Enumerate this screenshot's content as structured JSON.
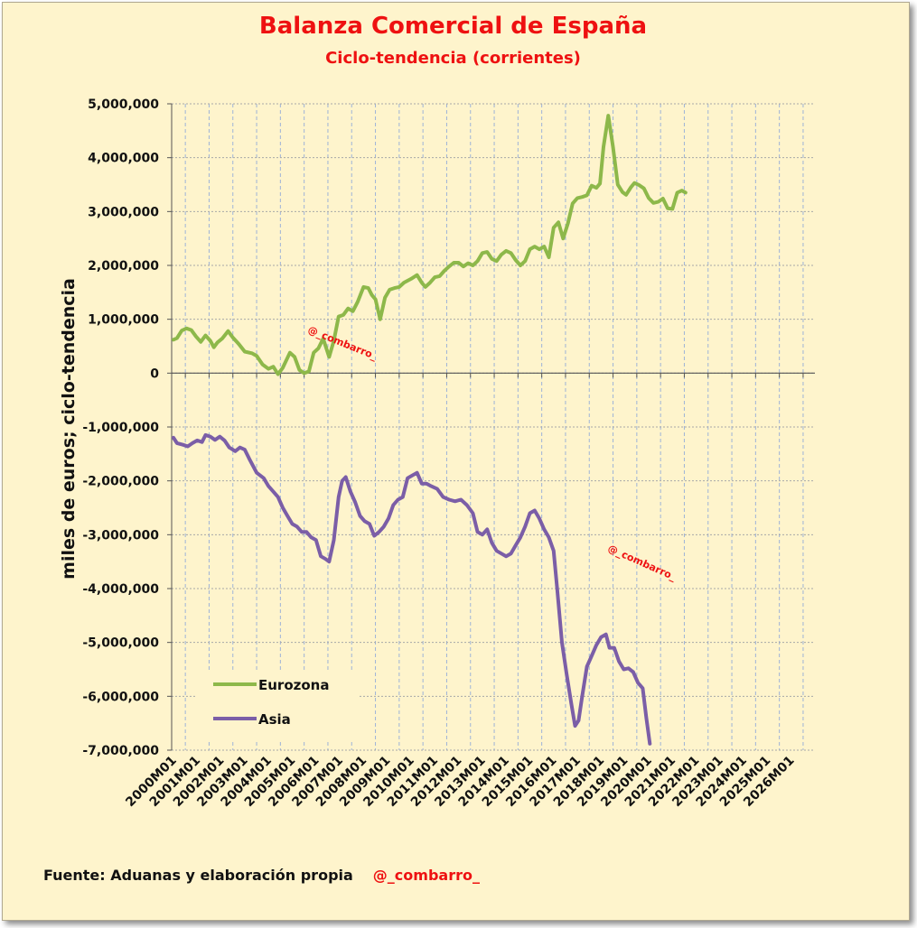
{
  "title": "Balanza Comercial de España",
  "subtitle": "Ciclo-tendencia (corrientes)",
  "footer": {
    "source": "Fuente: Aduanas y elaboración propia",
    "handle": "@_combarro_"
  },
  "watermark": "@_combarro_",
  "colors": {
    "title": "#EE1111",
    "eurozona": "#8DB84A",
    "asia": "#7B5EA7",
    "background": "#FEF4CC"
  },
  "chart_data": {
    "type": "line",
    "title": "Balanza Comercial de España",
    "subtitle": "Ciclo-tendencia (corrientes)",
    "ylabel": "miles de euros; ciclo-tendencia",
    "xlabel": "",
    "ylim": [
      -7000000,
      5000000
    ],
    "yticks": [
      "5,000,000",
      "4,000,000",
      "3,000,000",
      "2,000,000",
      "1,000,000",
      "0",
      "-1,000,000",
      "-2,000,000",
      "-3,000,000",
      "-4,000,000",
      "-5,000,000",
      "-6,000,000",
      "-7,000,000"
    ],
    "categories": [
      "2000M01",
      "2001M01",
      "2002M01",
      "2003M01",
      "2004M01",
      "2005M01",
      "2006M01",
      "2007M01",
      "2008M01",
      "2009M01",
      "2010M01",
      "2011M01",
      "2012M01",
      "2013M01",
      "2014M01",
      "2015M01",
      "2016M01",
      "2017M01",
      "2018M01",
      "2019M01",
      "2020M01",
      "2021M01",
      "2022M01",
      "2023M01",
      "2024M01",
      "2025M01",
      "2026M01"
    ],
    "grid": true,
    "legend": "bottom-left",
    "series": [
      {
        "name": "Eurozona",
        "color": "#8DB84A",
        "points": [
          [
            0,
            620000
          ],
          [
            0.15,
            650000
          ],
          [
            0.35,
            790000
          ],
          [
            0.55,
            830000
          ],
          [
            0.75,
            800000
          ],
          [
            0.95,
            680000
          ],
          [
            1.15,
            580000
          ],
          [
            1.35,
            700000
          ],
          [
            1.55,
            600000
          ],
          [
            1.7,
            480000
          ],
          [
            1.85,
            570000
          ],
          [
            2.05,
            640000
          ],
          [
            2.3,
            780000
          ],
          [
            2.5,
            660000
          ],
          [
            2.75,
            540000
          ],
          [
            3.0,
            400000
          ],
          [
            3.3,
            370000
          ],
          [
            3.5,
            320000
          ],
          [
            3.75,
            160000
          ],
          [
            4.0,
            80000
          ],
          [
            4.2,
            120000
          ],
          [
            4.4,
            -20000
          ],
          [
            4.6,
            100000
          ],
          [
            4.9,
            380000
          ],
          [
            5.1,
            300000
          ],
          [
            5.3,
            60000
          ],
          [
            5.5,
            0
          ],
          [
            5.7,
            30000
          ],
          [
            5.9,
            380000
          ],
          [
            6.1,
            460000
          ],
          [
            6.3,
            640000
          ],
          [
            6.55,
            300000
          ],
          [
            6.75,
            600000
          ],
          [
            6.95,
            1050000
          ],
          [
            7.15,
            1080000
          ],
          [
            7.35,
            1200000
          ],
          [
            7.55,
            1150000
          ],
          [
            7.75,
            1320000
          ],
          [
            8.0,
            1600000
          ],
          [
            8.2,
            1580000
          ],
          [
            8.35,
            1450000
          ],
          [
            8.5,
            1370000
          ],
          [
            8.7,
            1000000
          ],
          [
            8.9,
            1400000
          ],
          [
            9.1,
            1550000
          ],
          [
            9.3,
            1580000
          ],
          [
            9.5,
            1600000
          ],
          [
            9.7,
            1680000
          ],
          [
            10.0,
            1750000
          ],
          [
            10.25,
            1820000
          ],
          [
            10.45,
            1680000
          ],
          [
            10.6,
            1600000
          ],
          [
            10.8,
            1680000
          ],
          [
            11.0,
            1780000
          ],
          [
            11.2,
            1800000
          ],
          [
            11.4,
            1900000
          ],
          [
            11.6,
            1980000
          ],
          [
            11.8,
            2050000
          ],
          [
            12.0,
            2050000
          ],
          [
            12.2,
            1980000
          ],
          [
            12.4,
            2040000
          ],
          [
            12.6,
            2000000
          ],
          [
            12.8,
            2080000
          ],
          [
            13.0,
            2230000
          ],
          [
            13.2,
            2250000
          ],
          [
            13.4,
            2120000
          ],
          [
            13.6,
            2080000
          ],
          [
            13.8,
            2200000
          ],
          [
            14.0,
            2270000
          ],
          [
            14.2,
            2230000
          ],
          [
            14.4,
            2100000
          ],
          [
            14.6,
            2000000
          ],
          [
            14.8,
            2080000
          ],
          [
            15.0,
            2300000
          ],
          [
            15.2,
            2350000
          ],
          [
            15.4,
            2300000
          ],
          [
            15.6,
            2350000
          ],
          [
            15.8,
            2150000
          ],
          [
            16.0,
            2700000
          ],
          [
            16.2,
            2800000
          ],
          [
            16.4,
            2500000
          ],
          [
            16.6,
            2780000
          ],
          [
            16.8,
            3150000
          ],
          [
            17.0,
            3250000
          ],
          [
            17.2,
            3270000
          ],
          [
            17.4,
            3300000
          ],
          [
            17.6,
            3480000
          ],
          [
            17.8,
            3440000
          ],
          [
            17.95,
            3520000
          ],
          [
            18.1,
            4200000
          ],
          [
            18.3,
            4780000
          ],
          [
            18.5,
            4200000
          ],
          [
            18.7,
            3500000
          ],
          [
            18.9,
            3360000
          ],
          [
            19.05,
            3310000
          ],
          [
            19.25,
            3450000
          ],
          [
            19.4,
            3530000
          ],
          [
            19.6,
            3490000
          ],
          [
            19.8,
            3430000
          ],
          [
            20.0,
            3250000
          ],
          [
            20.2,
            3160000
          ],
          [
            20.4,
            3180000
          ],
          [
            20.6,
            3240000
          ],
          [
            20.8,
            3060000
          ],
          [
            21.0,
            3050000
          ],
          [
            21.2,
            3350000
          ],
          [
            21.4,
            3390000
          ],
          [
            21.55,
            3350000
          ]
        ]
      },
      {
        "name": "Asia",
        "color": "#7B5EA7",
        "points": [
          [
            0,
            -1200000
          ],
          [
            0.15,
            -1300000
          ],
          [
            0.4,
            -1330000
          ],
          [
            0.6,
            -1360000
          ],
          [
            0.8,
            -1300000
          ],
          [
            1.0,
            -1250000
          ],
          [
            1.2,
            -1280000
          ],
          [
            1.35,
            -1150000
          ],
          [
            1.55,
            -1180000
          ],
          [
            1.75,
            -1240000
          ],
          [
            1.95,
            -1180000
          ],
          [
            2.15,
            -1250000
          ],
          [
            2.35,
            -1380000
          ],
          [
            2.6,
            -1450000
          ],
          [
            2.8,
            -1380000
          ],
          [
            3.0,
            -1420000
          ],
          [
            3.2,
            -1600000
          ],
          [
            3.5,
            -1850000
          ],
          [
            3.8,
            -1950000
          ],
          [
            4.0,
            -2100000
          ],
          [
            4.2,
            -2200000
          ],
          [
            4.4,
            -2300000
          ],
          [
            4.6,
            -2500000
          ],
          [
            4.8,
            -2650000
          ],
          [
            5.0,
            -2800000
          ],
          [
            5.2,
            -2850000
          ],
          [
            5.4,
            -2950000
          ],
          [
            5.6,
            -2950000
          ],
          [
            5.8,
            -3050000
          ],
          [
            6.0,
            -3100000
          ],
          [
            6.2,
            -3400000
          ],
          [
            6.4,
            -3450000
          ],
          [
            6.55,
            -3500000
          ],
          [
            6.75,
            -3100000
          ],
          [
            6.95,
            -2300000
          ],
          [
            7.1,
            -2000000
          ],
          [
            7.25,
            -1930000
          ],
          [
            7.45,
            -2200000
          ],
          [
            7.65,
            -2400000
          ],
          [
            7.85,
            -2650000
          ],
          [
            8.05,
            -2750000
          ],
          [
            8.25,
            -2800000
          ],
          [
            8.45,
            -3020000
          ],
          [
            8.65,
            -2950000
          ],
          [
            8.85,
            -2850000
          ],
          [
            9.05,
            -2700000
          ],
          [
            9.25,
            -2450000
          ],
          [
            9.45,
            -2350000
          ],
          [
            9.65,
            -2300000
          ],
          [
            9.85,
            -1950000
          ],
          [
            10.05,
            -1900000
          ],
          [
            10.25,
            -1850000
          ],
          [
            10.45,
            -2050000
          ],
          [
            10.65,
            -2050000
          ],
          [
            10.85,
            -2100000
          ],
          [
            11.1,
            -2150000
          ],
          [
            11.35,
            -2300000
          ],
          [
            11.6,
            -2350000
          ],
          [
            11.85,
            -2380000
          ],
          [
            12.1,
            -2350000
          ],
          [
            12.35,
            -2450000
          ],
          [
            12.6,
            -2600000
          ],
          [
            12.8,
            -2950000
          ],
          [
            13.0,
            -3000000
          ],
          [
            13.2,
            -2900000
          ],
          [
            13.4,
            -3150000
          ],
          [
            13.6,
            -3300000
          ],
          [
            13.8,
            -3350000
          ],
          [
            14.0,
            -3400000
          ],
          [
            14.2,
            -3350000
          ],
          [
            14.4,
            -3200000
          ],
          [
            14.6,
            -3050000
          ],
          [
            14.8,
            -2850000
          ],
          [
            15.0,
            -2600000
          ],
          [
            15.2,
            -2550000
          ],
          [
            15.4,
            -2700000
          ],
          [
            15.6,
            -2900000
          ],
          [
            15.8,
            -3050000
          ],
          [
            16.0,
            -3300000
          ],
          [
            16.15,
            -4000000
          ],
          [
            16.35,
            -5000000
          ],
          [
            16.55,
            -5600000
          ],
          [
            16.75,
            -6150000
          ],
          [
            16.9,
            -6550000
          ],
          [
            17.05,
            -6450000
          ],
          [
            17.2,
            -6000000
          ],
          [
            17.4,
            -5450000
          ],
          [
            17.6,
            -5250000
          ],
          [
            17.8,
            -5050000
          ],
          [
            18.0,
            -4900000
          ],
          [
            18.2,
            -4850000
          ],
          [
            18.35,
            -5100000
          ],
          [
            18.55,
            -5100000
          ],
          [
            18.75,
            -5350000
          ],
          [
            18.95,
            -5500000
          ],
          [
            19.15,
            -5480000
          ],
          [
            19.35,
            -5550000
          ],
          [
            19.55,
            -5750000
          ],
          [
            19.75,
            -5850000
          ],
          [
            19.9,
            -6400000
          ],
          [
            20.05,
            -6880000
          ]
        ]
      }
    ]
  }
}
